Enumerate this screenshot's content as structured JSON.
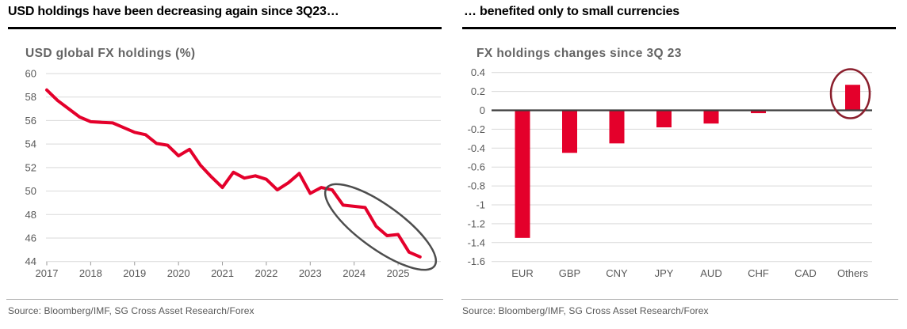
{
  "colors": {
    "accent_red": "#e4002b",
    "gridline": "#d9d9d9",
    "axis_text": "#595959",
    "zero_line": "#3d3d3d",
    "left_annotation_ellipse": "#4d4d4d",
    "right_annotation_ellipse": "#8a1e2c",
    "header_text": "#000000"
  },
  "panels": [
    {
      "header": "USD holdings have been decreasing again since 3Q23…",
      "chart_title": "USD global FX holdings (%)",
      "source": "Source: Bloomberg/IMF, SG Cross Asset Research/Forex"
    },
    {
      "header": "… benefited only to small currencies",
      "chart_title": "FX holdings changes since 3Q 23",
      "source": "Source: Bloomberg/IMF, SG Cross Asset Research/Forex"
    }
  ],
  "chart_data": [
    {
      "type": "line",
      "title": "USD global FX holdings (%)",
      "x_start": "2017Q1",
      "frequency": "quarterly",
      "x_tick_labels": [
        "2017",
        "2018",
        "2019",
        "2020",
        "2021",
        "2022",
        "2023",
        "2024",
        "2025"
      ],
      "values": [
        58.6,
        57.7,
        57.0,
        56.3,
        55.9,
        55.85,
        55.8,
        55.4,
        55.0,
        54.8,
        54.05,
        53.9,
        53.0,
        53.55,
        52.2,
        51.2,
        50.3,
        51.6,
        51.1,
        51.3,
        51.0,
        50.1,
        50.7,
        51.5,
        49.8,
        50.3,
        50.1,
        48.8,
        48.7,
        48.6,
        47.0,
        46.2,
        46.3,
        44.8,
        44.4
      ],
      "ylim": [
        44,
        60
      ],
      "y_ticks": [
        60,
        58,
        56,
        54,
        52,
        50,
        48,
        46,
        44
      ],
      "grid": "horizontal",
      "legend": "none",
      "annotation": "grey rotated ellipse circling the decline from late 2023 to 2025"
    },
    {
      "type": "bar",
      "title": "FX holdings changes since 3Q 23",
      "categories": [
        "EUR",
        "GBP",
        "CNY",
        "JPY",
        "AUD",
        "CHF",
        "CAD",
        "Others"
      ],
      "values": [
        -1.35,
        -0.45,
        -0.35,
        -0.18,
        -0.14,
        -0.03,
        0.0,
        0.27
      ],
      "ylim": [
        -1.6,
        0.4
      ],
      "y_ticks": [
        0.4,
        0.2,
        0,
        -0.2,
        -0.4,
        -0.6,
        -0.8,
        -1,
        -1.2,
        -1.4,
        -1.6
      ],
      "y_tick_labels": [
        "0.4",
        "0.2",
        "0",
        "-0.2",
        "-0.4",
        "-0.6",
        "-0.8",
        "-1",
        "-1.2",
        "-1.4",
        "-1.6"
      ],
      "grid": "horizontal",
      "legend": "none",
      "annotation": "dark red ellipse circling the positive Others bar"
    }
  ]
}
